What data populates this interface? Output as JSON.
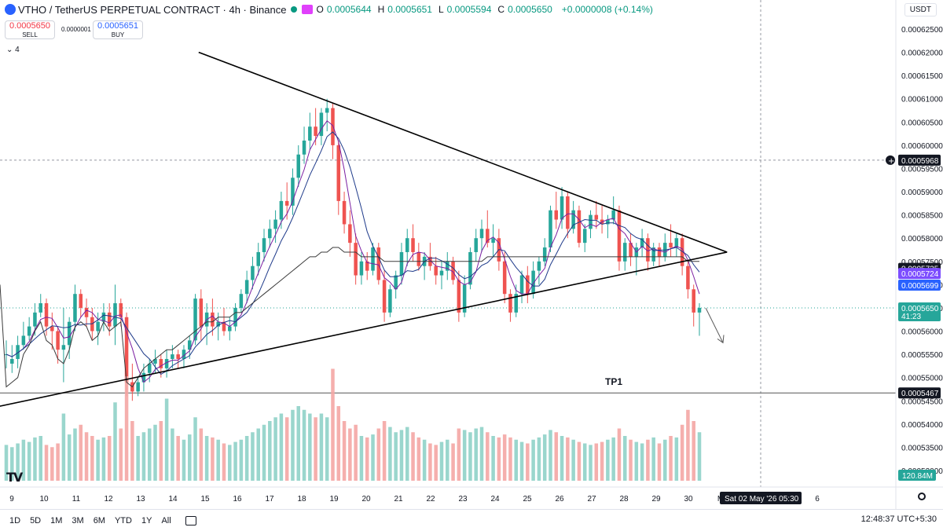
{
  "header": {
    "title": "VTHO / TetherUS PERPETUAL CONTRACT · 4h · Binance",
    "ohlc": [
      {
        "k": "O",
        "v": "0.0005644"
      },
      {
        "k": "H",
        "v": "0.0005651"
      },
      {
        "k": "L",
        "v": "0.0005594"
      },
      {
        "k": "C",
        "v": "0.0005650"
      },
      {
        "k": "",
        "v": "+0.0000008 (+0.14%)"
      }
    ]
  },
  "trade": {
    "sell_price": "0.0005650",
    "sell_label": "SELL",
    "buy_price": "0.0005651",
    "buy_label": "BUY",
    "spread": "0.0000001"
  },
  "indicator_toggle": "4",
  "currency": "USDT",
  "ranges": [
    "1D",
    "5D",
    "1M",
    "3M",
    "6M",
    "YTD",
    "1Y",
    "All"
  ],
  "clock": "12:48:37 UTC+5:30",
  "colors": {
    "up": "#26a69a",
    "down": "#ef5350",
    "ma_fast": "#7b1fa2",
    "ma_slow": "#1e3a8a",
    "ma_long": "#3b3b3b"
  },
  "chart_data": {
    "type": "candlestick",
    "y_ticks": [
      "0.00062500",
      "0.00062000",
      "0.00061500",
      "0.00061000",
      "0.00060500",
      "0.00060000",
      "0.00059500",
      "0.00059000",
      "0.00058500",
      "0.00058000",
      "0.00057500",
      "0.00057000",
      "0.00056500",
      "0.00056000",
      "0.00055500",
      "0.00055000",
      "0.00054500",
      "0.00054000",
      "0.00053500",
      "0.00053000"
    ],
    "ylim": [
      0.00053,
      0.000627
    ],
    "x_ticks": [
      "9",
      "10",
      "11",
      "12",
      "13",
      "14",
      "15",
      "16",
      "17",
      "18",
      "19",
      "20",
      "21",
      "22",
      "23",
      "24",
      "25",
      "26",
      "27",
      "28",
      "29",
      "30",
      "M",
      "4",
      "5",
      "6"
    ],
    "price_labels": [
      {
        "text": "0.0005968",
        "value": 0.0005968,
        "style": "crosshair"
      },
      {
        "text": "0.0005735",
        "value": 0.0005735,
        "style": "black"
      },
      {
        "text": "0.0005724",
        "value": 0.0005724,
        "style": "purple"
      },
      {
        "text": "0.0005699",
        "value": 0.0005699,
        "style": "blue"
      },
      {
        "text": "0.0005650",
        "sub": "41:23",
        "value": 0.000565,
        "style": "green"
      },
      {
        "text": "0.0005467",
        "value": 0.0005467,
        "style": "black"
      }
    ],
    "volume_label": "120.84M",
    "crosshair_date": "Sat 02 May '26   05:30",
    "annotations": [
      {
        "text": "TP1",
        "value": 0.0005467
      }
    ],
    "trendlines": [
      {
        "from": {
          "day": 14.8,
          "price": 0.00062
        },
        "to": {
          "day": 31.2,
          "price": 0.000577
        }
      },
      {
        "from": {
          "day": 8.4,
          "price": 0.0005435
        },
        "to": {
          "day": 31.2,
          "price": 0.000577
        }
      }
    ],
    "candles": [
      [
        0.000555,
        0.000558,
        0.000552,
        0.000555,
        0.000548,
        48
      ],
      [
        0.000553,
        0.000557,
        0.000551,
        0.000554,
        0.000549,
        45
      ],
      [
        0.000554,
        0.000559,
        0.000552,
        0.000557,
        0.00055,
        50
      ],
      [
        0.000557,
        0.000562,
        0.000556,
        0.000559,
        0.000555,
        55
      ],
      [
        0.000559,
        0.000563,
        0.000558,
        0.000561,
        0.000557,
        52
      ],
      [
        0.000561,
        0.000566,
        0.000559,
        0.000564,
        0.00056,
        58
      ],
      [
        0.000564,
        0.000568,
        0.000563,
        0.000566,
        0.000562,
        60
      ],
      [
        0.000566,
        0.000567,
        0.000559,
        0.000561,
        0.000558,
        48
      ],
      [
        0.000561,
        0.000564,
        0.000556,
        0.00056,
        0.000557,
        45
      ],
      [
        0.00056,
        0.000561,
        0.000553,
        0.000556,
        0.000554,
        50
      ],
      [
        0.000556,
        0.000565,
        0.000549,
        0.000557,
        0.000553,
        90
      ],
      [
        0.000557,
        0.000563,
        0.000554,
        0.000562,
        0.000556,
        62
      ],
      [
        0.000562,
        0.00057,
        0.00056,
        0.000568,
        0.000561,
        70
      ],
      [
        0.000568,
        0.000569,
        0.000563,
        0.000565,
        0.000562,
        75
      ],
      [
        0.000565,
        0.000567,
        0.000561,
        0.000563,
        0.000561,
        65
      ],
      [
        0.000563,
        0.000565,
        0.000558,
        0.00056,
        0.000558,
        60
      ],
      [
        0.00056,
        0.000564,
        0.000557,
        0.000562,
        0.000559,
        55
      ],
      [
        0.000562,
        0.000566,
        0.00056,
        0.000564,
        0.000562,
        58
      ],
      [
        0.000564,
        0.000566,
        0.000559,
        0.000561,
        0.00056,
        60
      ],
      [
        0.000561,
        0.00057,
        0.000557,
        0.000566,
        0.000561,
        105
      ],
      [
        0.000566,
        0.000567,
        0.000561,
        0.000563,
        0.000562,
        70
      ],
      [
        0.000563,
        0.000564,
        0.000546,
        0.000549,
        0.000549,
        140
      ],
      [
        0.000549,
        0.000553,
        0.000545,
        0.000547,
        0.000548,
        80
      ],
      [
        0.000547,
        0.00055,
        0.000546,
        0.000549,
        0.00055,
        60
      ],
      [
        0.000549,
        0.000553,
        0.000547,
        0.000551,
        0.000552,
        65
      ],
      [
        0.000551,
        0.000554,
        0.000549,
        0.000553,
        0.000553,
        70
      ],
      [
        0.000553,
        0.000556,
        0.000551,
        0.000554,
        0.000554,
        75
      ],
      [
        0.000554,
        0.000555,
        0.00055,
        0.000552,
        0.000555,
        80
      ],
      [
        0.000552,
        0.000556,
        0.00055,
        0.000554,
        0.000556,
        110
      ],
      [
        0.000554,
        0.000557,
        0.000552,
        0.000555,
        0.000556,
        70
      ],
      [
        0.000555,
        0.000556,
        0.000552,
        0.000554,
        0.000557,
        60
      ],
      [
        0.000554,
        0.000557,
        0.000552,
        0.000556,
        0.000558,
        55
      ],
      [
        0.000556,
        0.000559,
        0.000554,
        0.000558,
        0.000559,
        62
      ],
      [
        0.000558,
        0.000568,
        0.000557,
        0.000567,
        0.00056,
        85
      ],
      [
        0.000567,
        0.000569,
        0.000558,
        0.000561,
        0.000561,
        70
      ],
      [
        0.000561,
        0.000566,
        0.000557,
        0.000564,
        0.000562,
        60
      ],
      [
        0.000564,
        0.000567,
        0.000559,
        0.000561,
        0.000562,
        58
      ],
      [
        0.000561,
        0.000564,
        0.000558,
        0.000562,
        0.000563,
        55
      ],
      [
        0.000562,
        0.000565,
        0.000559,
        0.00056,
        0.000563,
        50
      ],
      [
        0.00056,
        0.000563,
        0.000558,
        0.000561,
        0.000563,
        48
      ],
      [
        0.000561,
        0.000566,
        0.00056,
        0.000565,
        0.000564,
        52
      ],
      [
        0.000565,
        0.000569,
        0.000564,
        0.000568,
        0.000564,
        55
      ],
      [
        0.000568,
        0.000573,
        0.000566,
        0.000571,
        0.000565,
        60
      ],
      [
        0.000571,
        0.000576,
        0.000569,
        0.000574,
        0.000566,
        65
      ],
      [
        0.000574,
        0.000579,
        0.000572,
        0.000577,
        0.000567,
        70
      ],
      [
        0.000577,
        0.000582,
        0.000575,
        0.00058,
        0.000568,
        75
      ],
      [
        0.00058,
        0.000584,
        0.000578,
        0.000582,
        0.000569,
        80
      ],
      [
        0.000582,
        0.000586,
        0.000579,
        0.000584,
        0.00057,
        85
      ],
      [
        0.000584,
        0.00059,
        0.000582,
        0.000588,
        0.000571,
        90
      ],
      [
        0.000588,
        0.000592,
        0.000584,
        0.000587,
        0.000572,
        85
      ],
      [
        0.000587,
        0.000595,
        0.000585,
        0.000593,
        0.000573,
        95
      ],
      [
        0.000593,
        0.0006,
        0.000591,
        0.000598,
        0.000574,
        100
      ],
      [
        0.000598,
        0.000604,
        0.000596,
        0.000601,
        0.000575,
        95
      ],
      [
        0.000601,
        0.000607,
        0.000599,
        0.000604,
        0.000576,
        90
      ],
      [
        0.000604,
        0.000608,
        0.0006,
        0.000602,
        0.000576,
        85
      ],
      [
        0.000602,
        0.000608,
        0.0006,
        0.000607,
        0.000577,
        90
      ],
      [
        0.000607,
        0.00061,
        0.000603,
        0.000608,
        0.000577,
        85
      ],
      [
        0.000608,
        0.000609,
        0.000597,
        0.0006,
        0.000578,
        150
      ],
      [
        0.0006,
        0.000601,
        0.000585,
        0.000588,
        0.000578,
        100
      ],
      [
        0.000588,
        0.00059,
        0.000581,
        0.000583,
        0.000577,
        80
      ],
      [
        0.000583,
        0.000586,
        0.000576,
        0.000579,
        0.000577,
        70
      ],
      [
        0.000579,
        0.000581,
        0.00057,
        0.000572,
        0.000577,
        75
      ],
      [
        0.000572,
        0.000577,
        0.00057,
        0.000575,
        0.000576,
        60
      ],
      [
        0.000575,
        0.000577,
        0.000571,
        0.000573,
        0.000576,
        58
      ],
      [
        0.000573,
        0.000579,
        0.000572,
        0.000578,
        0.000576,
        62
      ],
      [
        0.000578,
        0.000579,
        0.00057,
        0.000571,
        0.000576,
        70
      ],
      [
        0.000571,
        0.000573,
        0.000562,
        0.000564,
        0.000575,
        80
      ],
      [
        0.000564,
        0.00057,
        0.000563,
        0.000569,
        0.000575,
        72
      ],
      [
        0.000569,
        0.000573,
        0.000567,
        0.000572,
        0.000575,
        65
      ],
      [
        0.000572,
        0.000579,
        0.00057,
        0.000577,
        0.000575,
        68
      ],
      [
        0.000577,
        0.000582,
        0.000574,
        0.00058,
        0.000575,
        72
      ],
      [
        0.00058,
        0.000583,
        0.000575,
        0.000577,
        0.000575,
        65
      ],
      [
        0.000577,
        0.000579,
        0.000573,
        0.000574,
        0.000575,
        58
      ],
      [
        0.000574,
        0.000577,
        0.000571,
        0.000576,
        0.000575,
        55
      ],
      [
        0.000576,
        0.000579,
        0.000573,
        0.000574,
        0.000575,
        50
      ],
      [
        0.000574,
        0.000576,
        0.00057,
        0.000572,
        0.000575,
        48
      ],
      [
        0.000572,
        0.000575,
        0.000569,
        0.000573,
        0.000575,
        52
      ],
      [
        0.000573,
        0.000577,
        0.000571,
        0.000575,
        0.000575,
        55
      ],
      [
        0.000575,
        0.000576,
        0.00057,
        0.000571,
        0.000575,
        50
      ],
      [
        0.000571,
        0.000573,
        0.000562,
        0.000564,
        0.000575,
        70
      ],
      [
        0.000564,
        0.000572,
        0.000563,
        0.00057,
        0.000575,
        68
      ],
      [
        0.00057,
        0.000578,
        0.000569,
        0.000577,
        0.000575,
        65
      ],
      [
        0.000577,
        0.000582,
        0.000575,
        0.00058,
        0.000575,
        70
      ],
      [
        0.00058,
        0.000584,
        0.000577,
        0.000582,
        0.000575,
        72
      ],
      [
        0.000582,
        0.000586,
        0.000578,
        0.000579,
        0.000576,
        65
      ],
      [
        0.000579,
        0.000583,
        0.000576,
        0.00058,
        0.000576,
        60
      ],
      [
        0.00058,
        0.000582,
        0.000573,
        0.000575,
        0.000576,
        58
      ],
      [
        0.000575,
        0.000577,
        0.000566,
        0.000568,
        0.000576,
        62
      ],
      [
        0.000568,
        0.000569,
        0.000562,
        0.000564,
        0.000576,
        58
      ],
      [
        0.000564,
        0.00057,
        0.000563,
        0.000568,
        0.000576,
        55
      ],
      [
        0.000568,
        0.000573,
        0.000566,
        0.000572,
        0.000576,
        52
      ],
      [
        0.000572,
        0.000574,
        0.000566,
        0.000568,
        0.000576,
        50
      ],
      [
        0.000568,
        0.000575,
        0.000567,
        0.000573,
        0.000576,
        55
      ],
      [
        0.000573,
        0.000576,
        0.00057,
        0.000575,
        0.000576,
        58
      ],
      [
        0.000575,
        0.00058,
        0.000574,
        0.000578,
        0.000576,
        62
      ],
      [
        0.000578,
        0.000587,
        0.000577,
        0.000586,
        0.000576,
        68
      ],
      [
        0.000586,
        0.00059,
        0.000582,
        0.000584,
        0.000576,
        65
      ],
      [
        0.000584,
        0.000591,
        0.000582,
        0.000589,
        0.000576,
        60
      ],
      [
        0.000589,
        0.00059,
        0.00058,
        0.000582,
        0.000576,
        58
      ],
      [
        0.000582,
        0.000588,
        0.000581,
        0.000586,
        0.000576,
        55
      ],
      [
        0.000586,
        0.000587,
        0.000578,
        0.000579,
        0.000576,
        52
      ],
      [
        0.000579,
        0.000583,
        0.000577,
        0.000582,
        0.000576,
        50
      ],
      [
        0.000582,
        0.000586,
        0.00058,
        0.000585,
        0.000576,
        48
      ],
      [
        0.000585,
        0.000588,
        0.000582,
        0.000584,
        0.000576,
        50
      ],
      [
        0.000584,
        0.000587,
        0.000581,
        0.000583,
        0.000576,
        52
      ],
      [
        0.000583,
        0.000585,
        0.00058,
        0.000584,
        0.000576,
        55
      ],
      [
        0.000584,
        0.000589,
        0.000583,
        0.000586,
        0.000576,
        58
      ],
      [
        0.000586,
        0.000587,
        0.000573,
        0.000575,
        0.000576,
        70
      ],
      [
        0.000575,
        0.00058,
        0.000573,
        0.000579,
        0.000576,
        60
      ],
      [
        0.000579,
        0.000581,
        0.000574,
        0.000576,
        0.000576,
        55
      ],
      [
        0.000576,
        0.000579,
        0.000572,
        0.000578,
        0.000576,
        52
      ],
      [
        0.000578,
        0.000582,
        0.000576,
        0.00058,
        0.000576,
        50
      ],
      [
        0.00058,
        0.000581,
        0.000573,
        0.000575,
        0.000576,
        55
      ],
      [
        0.000575,
        0.000579,
        0.000574,
        0.000578,
        0.000576,
        58
      ],
      [
        0.000578,
        0.000579,
        0.000574,
        0.000576,
        0.000576,
        50
      ],
      [
        0.000576,
        0.000581,
        0.000575,
        0.000579,
        0.000576,
        55
      ],
      [
        0.000579,
        0.000583,
        0.000576,
        0.000578,
        0.000576,
        60
      ],
      [
        0.000578,
        0.000581,
        0.000576,
        0.00058,
        0.000576,
        58
      ],
      [
        0.00058,
        0.000581,
        0.000572,
        0.000574,
        0.000576,
        75
      ],
      [
        0.000574,
        0.000575,
        0.000567,
        0.000569,
        0.000575,
        95
      ],
      [
        0.000569,
        0.00057,
        0.000561,
        0.000564,
        0.000575,
        80
      ],
      [
        0.000564,
        0.000566,
        0.000559,
        0.000565,
        0.000575,
        65
      ]
    ]
  }
}
